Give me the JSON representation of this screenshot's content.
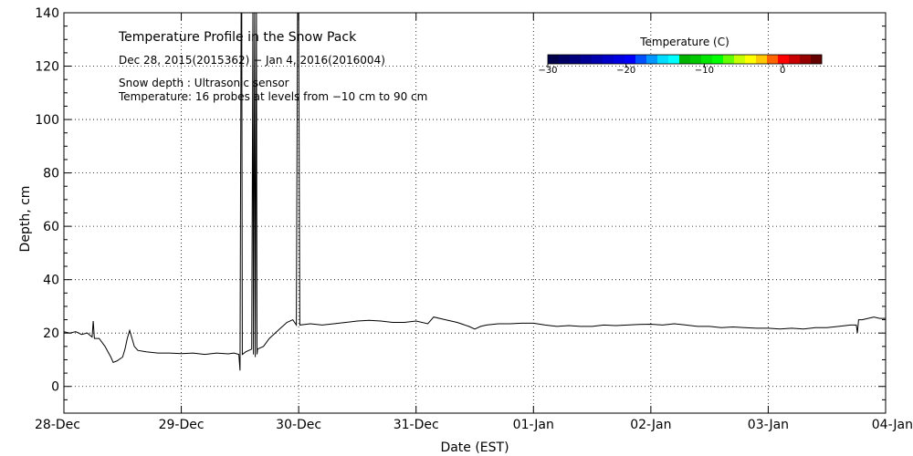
{
  "chart_data": {
    "type": "line",
    "title": "Temperature Profile in the Snow Pack",
    "subtitle": "Dec 28, 2015(2015362) − Jan  4, 2016(2016004)",
    "annotations": [
      "Snow depth : Ultrasonic sensor",
      "Temperature: 16 probes at levels from −10 cm to 90 cm"
    ],
    "xlabel": "Date (EST)",
    "ylabel": "Depth, cm",
    "xlim": [
      0,
      7
    ],
    "ylim": [
      -10,
      140
    ],
    "x_ticks": [
      {
        "value": 0,
        "label": "28-Dec"
      },
      {
        "value": 1,
        "label": "29-Dec"
      },
      {
        "value": 2,
        "label": "30-Dec"
      },
      {
        "value": 3,
        "label": "31-Dec"
      },
      {
        "value": 4,
        "label": "01-Jan"
      },
      {
        "value": 5,
        "label": "02-Jan"
      },
      {
        "value": 6,
        "label": "03-Jan"
      },
      {
        "value": 7,
        "label": "04-Jan"
      }
    ],
    "y_ticks": [
      0,
      20,
      40,
      60,
      80,
      100,
      120,
      140
    ],
    "grid": true,
    "colorbar": {
      "title": "Temperature (C)",
      "min": -30,
      "max": 5,
      "ticks": [
        {
          "value": -30,
          "label": "−30"
        },
        {
          "value": -20,
          "label": "−20"
        },
        {
          "value": -10,
          "label": "−10"
        },
        {
          "value": 0,
          "label": "0"
        }
      ],
      "colors": [
        "#00004b",
        "#000064",
        "#00007d",
        "#000096",
        "#0000af",
        "#0000c8",
        "#0000e1",
        "#0000fa",
        "#0050ff",
        "#0096ff",
        "#00dcff",
        "#00ffff",
        "#00b400",
        "#00c800",
        "#00e600",
        "#00ff00",
        "#64ff00",
        "#c8ff00",
        "#ffff00",
        "#ffc800",
        "#ff6400",
        "#ff0000",
        "#c80000",
        "#960000",
        "#640000"
      ]
    },
    "series": [
      {
        "name": "Snow depth",
        "points": [
          [
            0.0,
            20.5
          ],
          [
            0.05,
            20.0
          ],
          [
            0.1,
            20.5
          ],
          [
            0.15,
            19.5
          ],
          [
            0.2,
            20.0
          ],
          [
            0.24,
            18.5
          ],
          [
            0.25,
            24.5
          ],
          [
            0.26,
            18.0
          ],
          [
            0.3,
            18.0
          ],
          [
            0.35,
            15.0
          ],
          [
            0.4,
            11.0
          ],
          [
            0.42,
            9.0
          ],
          [
            0.45,
            9.5
          ],
          [
            0.5,
            11.0
          ],
          [
            0.52,
            14.0
          ],
          [
            0.54,
            18.0
          ],
          [
            0.56,
            21.0
          ],
          [
            0.58,
            18.0
          ],
          [
            0.6,
            15.0
          ],
          [
            0.63,
            13.5
          ],
          [
            0.7,
            13.0
          ],
          [
            0.8,
            12.5
          ],
          [
            0.9,
            12.5
          ],
          [
            1.0,
            12.3
          ],
          [
            1.1,
            12.5
          ],
          [
            1.2,
            12.0
          ],
          [
            1.3,
            12.5
          ],
          [
            1.4,
            12.2
          ],
          [
            1.45,
            12.5
          ],
          [
            1.49,
            12.0
          ],
          [
            1.5,
            6.0
          ],
          [
            1.51,
            140.0
          ],
          [
            1.515,
            140.0
          ],
          [
            1.52,
            12.0
          ],
          [
            1.55,
            13.0
          ],
          [
            1.6,
            14.0
          ],
          [
            1.61,
            140.0
          ],
          [
            1.615,
            12.0
          ],
          [
            1.625,
            140.0
          ],
          [
            1.63,
            11.0
          ],
          [
            1.64,
            140.0
          ],
          [
            1.645,
            12.0
          ],
          [
            1.65,
            14.0
          ],
          [
            1.7,
            15.0
          ],
          [
            1.75,
            18.0
          ],
          [
            1.8,
            20.0
          ],
          [
            1.85,
            22.0
          ],
          [
            1.9,
            24.0
          ],
          [
            1.95,
            25.0
          ],
          [
            1.98,
            23.0
          ],
          [
            1.99,
            140.0
          ],
          [
            2.0,
            140.0
          ],
          [
            2.01,
            23.0
          ],
          [
            2.1,
            23.5
          ],
          [
            2.2,
            23.0
          ],
          [
            2.3,
            23.5
          ],
          [
            2.4,
            24.0
          ],
          [
            2.5,
            24.5
          ],
          [
            2.6,
            24.8
          ],
          [
            2.7,
            24.5
          ],
          [
            2.8,
            24.0
          ],
          [
            2.9,
            24.0
          ],
          [
            3.0,
            24.5
          ],
          [
            3.1,
            23.5
          ],
          [
            3.15,
            26.0
          ],
          [
            3.25,
            25.0
          ],
          [
            3.35,
            24.0
          ],
          [
            3.45,
            22.5
          ],
          [
            3.5,
            21.5
          ],
          [
            3.55,
            22.5
          ],
          [
            3.6,
            23.0
          ],
          [
            3.7,
            23.5
          ],
          [
            3.8,
            23.5
          ],
          [
            3.9,
            23.7
          ],
          [
            4.0,
            23.7
          ],
          [
            4.1,
            23.0
          ],
          [
            4.2,
            22.5
          ],
          [
            4.3,
            22.8
          ],
          [
            4.4,
            22.5
          ],
          [
            4.5,
            22.5
          ],
          [
            4.6,
            23.0
          ],
          [
            4.7,
            22.8
          ],
          [
            4.8,
            23.0
          ],
          [
            4.9,
            23.2
          ],
          [
            5.0,
            23.3
          ],
          [
            5.1,
            23.0
          ],
          [
            5.2,
            23.5
          ],
          [
            5.3,
            23.0
          ],
          [
            5.4,
            22.5
          ],
          [
            5.5,
            22.5
          ],
          [
            5.6,
            22.0
          ],
          [
            5.7,
            22.3
          ],
          [
            5.8,
            22.0
          ],
          [
            5.9,
            21.8
          ],
          [
            6.0,
            21.8
          ],
          [
            6.1,
            21.5
          ],
          [
            6.2,
            21.8
          ],
          [
            6.3,
            21.5
          ],
          [
            6.4,
            22.0
          ],
          [
            6.5,
            22.0
          ],
          [
            6.6,
            22.5
          ],
          [
            6.7,
            23.0
          ],
          [
            6.75,
            23.0
          ],
          [
            6.76,
            20.0
          ],
          [
            6.77,
            25.0
          ],
          [
            6.8,
            25.0
          ],
          [
            6.85,
            25.5
          ],
          [
            6.9,
            26.0
          ],
          [
            6.95,
            25.5
          ],
          [
            7.0,
            25.5
          ]
        ]
      }
    ]
  }
}
